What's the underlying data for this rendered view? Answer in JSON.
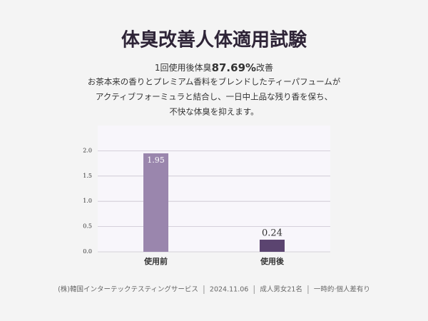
{
  "header": {
    "title": "体臭改善人体適用試験",
    "subtitle": [
      "1回使用後体臭",
      "87.69%",
      "改善"
    ],
    "description": [
      "お茶本来の香りとプレミアム香料をブレンドしたティーパフュームが",
      "アクティブフォーミュラと結合し、一日中上品な残り香を保ち、",
      "不快な体臭を抑えます。"
    ]
  },
  "chart_data": {
    "type": "bar",
    "categories": [
      "使用前",
      "使用後"
    ],
    "values": [
      1.95,
      0.24
    ],
    "colors": [
      "#9a86ad",
      "#5b4470"
    ],
    "ylim": [
      0,
      2.5
    ],
    "yticks": [
      {
        "value": 0,
        "label": "0.0"
      },
      {
        "value": 0.5,
        "label": "0.5"
      },
      {
        "value": 1,
        "label": "1.0"
      },
      {
        "value": 1.5,
        "label": "1.5"
      },
      {
        "value": 2,
        "label": "2.0"
      }
    ],
    "grid": true
  },
  "footer": [
    "(株)韓国インターテックテスティングサービス",
    "2024.11.06",
    "成人男女21名",
    "一時的·個人差有り"
  ]
}
